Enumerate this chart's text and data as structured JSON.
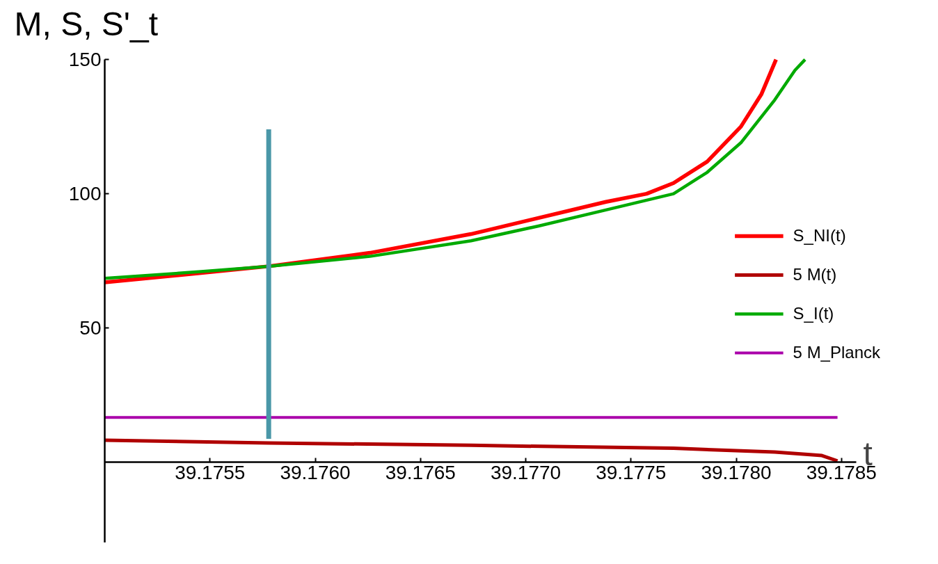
{
  "chart_data": {
    "type": "line",
    "ylabel": "M, S, S'_t",
    "xlabel": "t",
    "xlim": [
      39.175,
      39.17857
    ],
    "ylim": [
      -30,
      150
    ],
    "xticks": [
      {
        "value": 39.1755,
        "label": "39.1755"
      },
      {
        "value": 39.176,
        "label": "39.1760"
      },
      {
        "value": 39.1765,
        "label": "39.1765"
      },
      {
        "value": 39.177,
        "label": "39.1770"
      },
      {
        "value": 39.1775,
        "label": "39.1775"
      },
      {
        "value": 39.178,
        "label": "39.1780"
      },
      {
        "value": 39.1785,
        "label": "39.1785"
      }
    ],
    "yticks": [
      50,
      100,
      150
    ],
    "grid": false,
    "legend": "right",
    "line_style": "solid",
    "marker": "none",
    "series": [
      {
        "name": "S_NI(t)",
        "color": "#ff0000",
        "x": [
          39.175,
          39.175458,
          39.175779,
          39.17626,
          39.17674,
          39.177061,
          39.177381,
          39.177574,
          39.177702,
          39.177862,
          39.178022,
          39.178119,
          39.178189
        ],
        "values": [
          67,
          70.5,
          73,
          78,
          85,
          91,
          97,
          100,
          104,
          112,
          125,
          137,
          150
        ]
      },
      {
        "name": "5 M(t)",
        "color": "#b00000",
        "x": [
          39.175,
          39.175779,
          39.17674,
          39.177702,
          39.178183,
          39.178407,
          39.178481
        ],
        "values": [
          8.2,
          7.2,
          6.3,
          5.2,
          3.8,
          2.5,
          0.5
        ]
      },
      {
        "name": "S_I(t)",
        "color": "#00aa00",
        "x": [
          39.175,
          39.175458,
          39.175779,
          39.17626,
          39.17674,
          39.177061,
          39.177381,
          39.177702,
          39.177862,
          39.178022,
          39.178183,
          39.178279,
          39.178327
        ],
        "values": [
          68.5,
          71,
          73,
          76.7,
          82.5,
          88,
          94,
          100,
          108,
          119,
          135,
          146,
          150
        ]
      },
      {
        "name": "5 M_Planck",
        "color": "#aa00aa",
        "x": [
          39.175,
          39.178481
        ],
        "values": [
          16.7,
          16.7
        ]
      },
      {
        "color": "#4a97a8",
        "x": [
          39.175779,
          39.175779
        ],
        "values": [
          8.7,
          124
        ]
      }
    ]
  }
}
